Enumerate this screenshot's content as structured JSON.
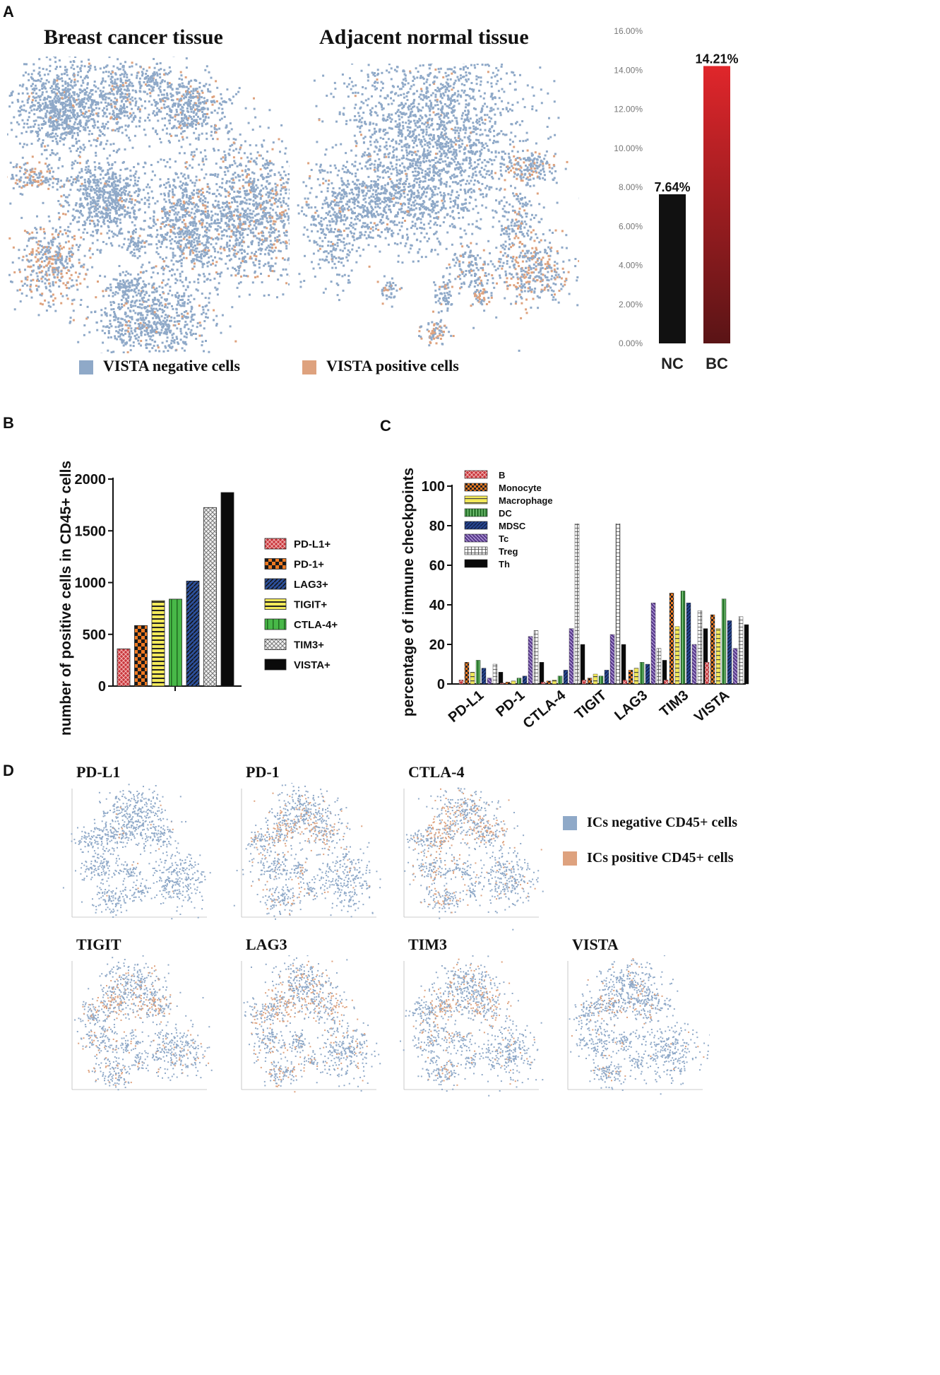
{
  "panel_labels": {
    "a": "A",
    "b": "B",
    "c": "C",
    "d": "D"
  },
  "colors": {
    "negative": "#8fa9c8",
    "positive": "#dea27e",
    "nc_bar": "#111111",
    "bc_bar_top": "#e0262b",
    "bc_bar_bottom": "#5a1416"
  },
  "panel_a": {
    "tsne_titles": [
      "Breast cancer tissue",
      "Adjacent normal tissue"
    ],
    "legend": {
      "negative": "VISTA negative cells",
      "positive": "VISTA positive cells"
    }
  },
  "panel_d": {
    "titles": [
      "PD-L1",
      "PD-1",
      "CTLA-4",
      "TIGIT",
      "LAG3",
      "TIM3",
      "VISTA"
    ],
    "legend": {
      "negative": "ICs negative CD45+ cells",
      "positive": "ICs positive CD45+ cells"
    }
  },
  "chart_data": [
    {
      "id": "panel_a_bar",
      "type": "bar",
      "categories": [
        "NC",
        "BC"
      ],
      "values": [
        7.64,
        14.21
      ],
      "data_labels": [
        "7.64%",
        "14.21%"
      ],
      "y_ticks": [
        "0.00%",
        "2.00%",
        "4.00%",
        "6.00%",
        "8.00%",
        "10.00%",
        "12.00%",
        "14.00%",
        "16.00%"
      ],
      "ylim": [
        0,
        16
      ]
    },
    {
      "id": "panel_b",
      "type": "bar",
      "ylabel": "number of positive cells in CD45+ cells",
      "ylim": [
        0,
        2000
      ],
      "y_ticks": [
        "0",
        "500",
        "1000",
        "1500",
        "2000"
      ],
      "categories": [
        "PD-L1+",
        "PD-1+",
        "TIGIT+",
        "CTLA-4+",
        "LAG3+",
        "TIM3+",
        "VISTA+"
      ],
      "values": [
        360,
        585,
        825,
        840,
        1015,
        1725,
        1870
      ],
      "legend": [
        "PD-L1+",
        "PD-1+",
        "LAG3+",
        "TIGIT+",
        "CTLA-4+",
        "TIM3+",
        "VISTA+"
      ]
    },
    {
      "id": "panel_c",
      "type": "bar",
      "ylabel": "percentage of immune checkpoints",
      "ylim": [
        0,
        100
      ],
      "y_ticks": [
        "0",
        "20",
        "40",
        "60",
        "80",
        "100"
      ],
      "categories": [
        "PD-L1",
        "PD-1",
        "CTLA-4",
        "TIGIT",
        "LAG3",
        "TIM3",
        "VISTA"
      ],
      "series": [
        {
          "name": "B",
          "values": [
            2,
            0.5,
            1,
            2,
            2,
            2,
            11
          ]
        },
        {
          "name": "Monocyte",
          "values": [
            11,
            1,
            1.5,
            3,
            7,
            46,
            35
          ]
        },
        {
          "name": "Macrophage",
          "values": [
            6,
            1.5,
            2,
            5,
            8,
            29,
            28
          ]
        },
        {
          "name": "DC",
          "values": [
            12,
            3,
            4,
            4,
            11,
            47,
            43
          ]
        },
        {
          "name": "MDSC",
          "values": [
            8,
            4,
            7,
            7,
            10,
            41,
            32
          ]
        },
        {
          "name": "Tc",
          "values": [
            3,
            24,
            28,
            25,
            41,
            20,
            18
          ]
        },
        {
          "name": "Treg",
          "values": [
            10,
            27,
            81,
            81,
            18,
            37,
            34
          ]
        },
        {
          "name": "Th",
          "values": [
            6,
            11,
            20,
            20,
            12,
            28,
            30
          ]
        }
      ]
    }
  ]
}
